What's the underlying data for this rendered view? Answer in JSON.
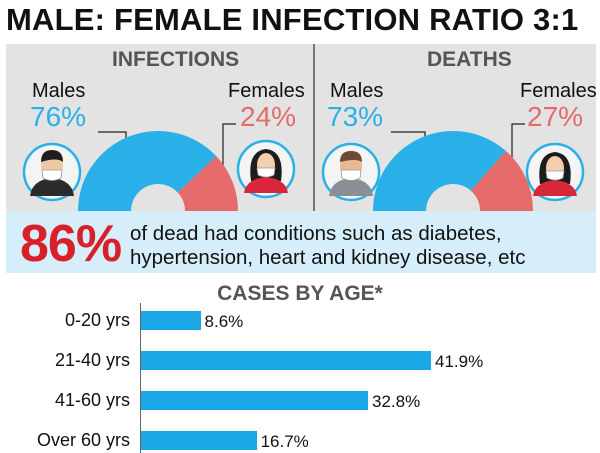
{
  "title": "MALE: FEMALE INFECTION RATIO 3:1",
  "colors": {
    "male": "#2ab0e8",
    "female": "#e56a6a",
    "bar": "#1ca7e6",
    "highlight": "#d8202a"
  },
  "infections": {
    "heading": "INFECTIONS",
    "male_label": "Males",
    "male_pct": "76%",
    "female_label": "Females",
    "female_pct": "24%"
  },
  "deaths": {
    "heading": "DEATHS",
    "male_label": "Males",
    "male_pct": "73%",
    "female_label": "Females",
    "female_pct": "27%"
  },
  "callout": {
    "big": "86%",
    "line1": "of dead had conditions such as diabetes,",
    "line2": "hypertension, heart and kidney disease, etc"
  },
  "chart_data": [
    {
      "type": "pie",
      "title": "INFECTIONS",
      "labels": [
        "Males",
        "Females"
      ],
      "values": [
        76,
        24
      ]
    },
    {
      "type": "pie",
      "title": "DEATHS",
      "labels": [
        "Males",
        "Females"
      ],
      "values": [
        73,
        27
      ]
    },
    {
      "type": "bar",
      "orientation": "horizontal",
      "title": "CASES BY AGE*",
      "categories": [
        "0-20 yrs",
        "21-40 yrs",
        "41-60 yrs",
        "Over 60 yrs"
      ],
      "values": [
        8.6,
        41.9,
        32.8,
        16.7
      ],
      "value_labels": [
        "8.6%",
        "41.9%",
        "32.8%",
        "16.7%"
      ]
    }
  ]
}
